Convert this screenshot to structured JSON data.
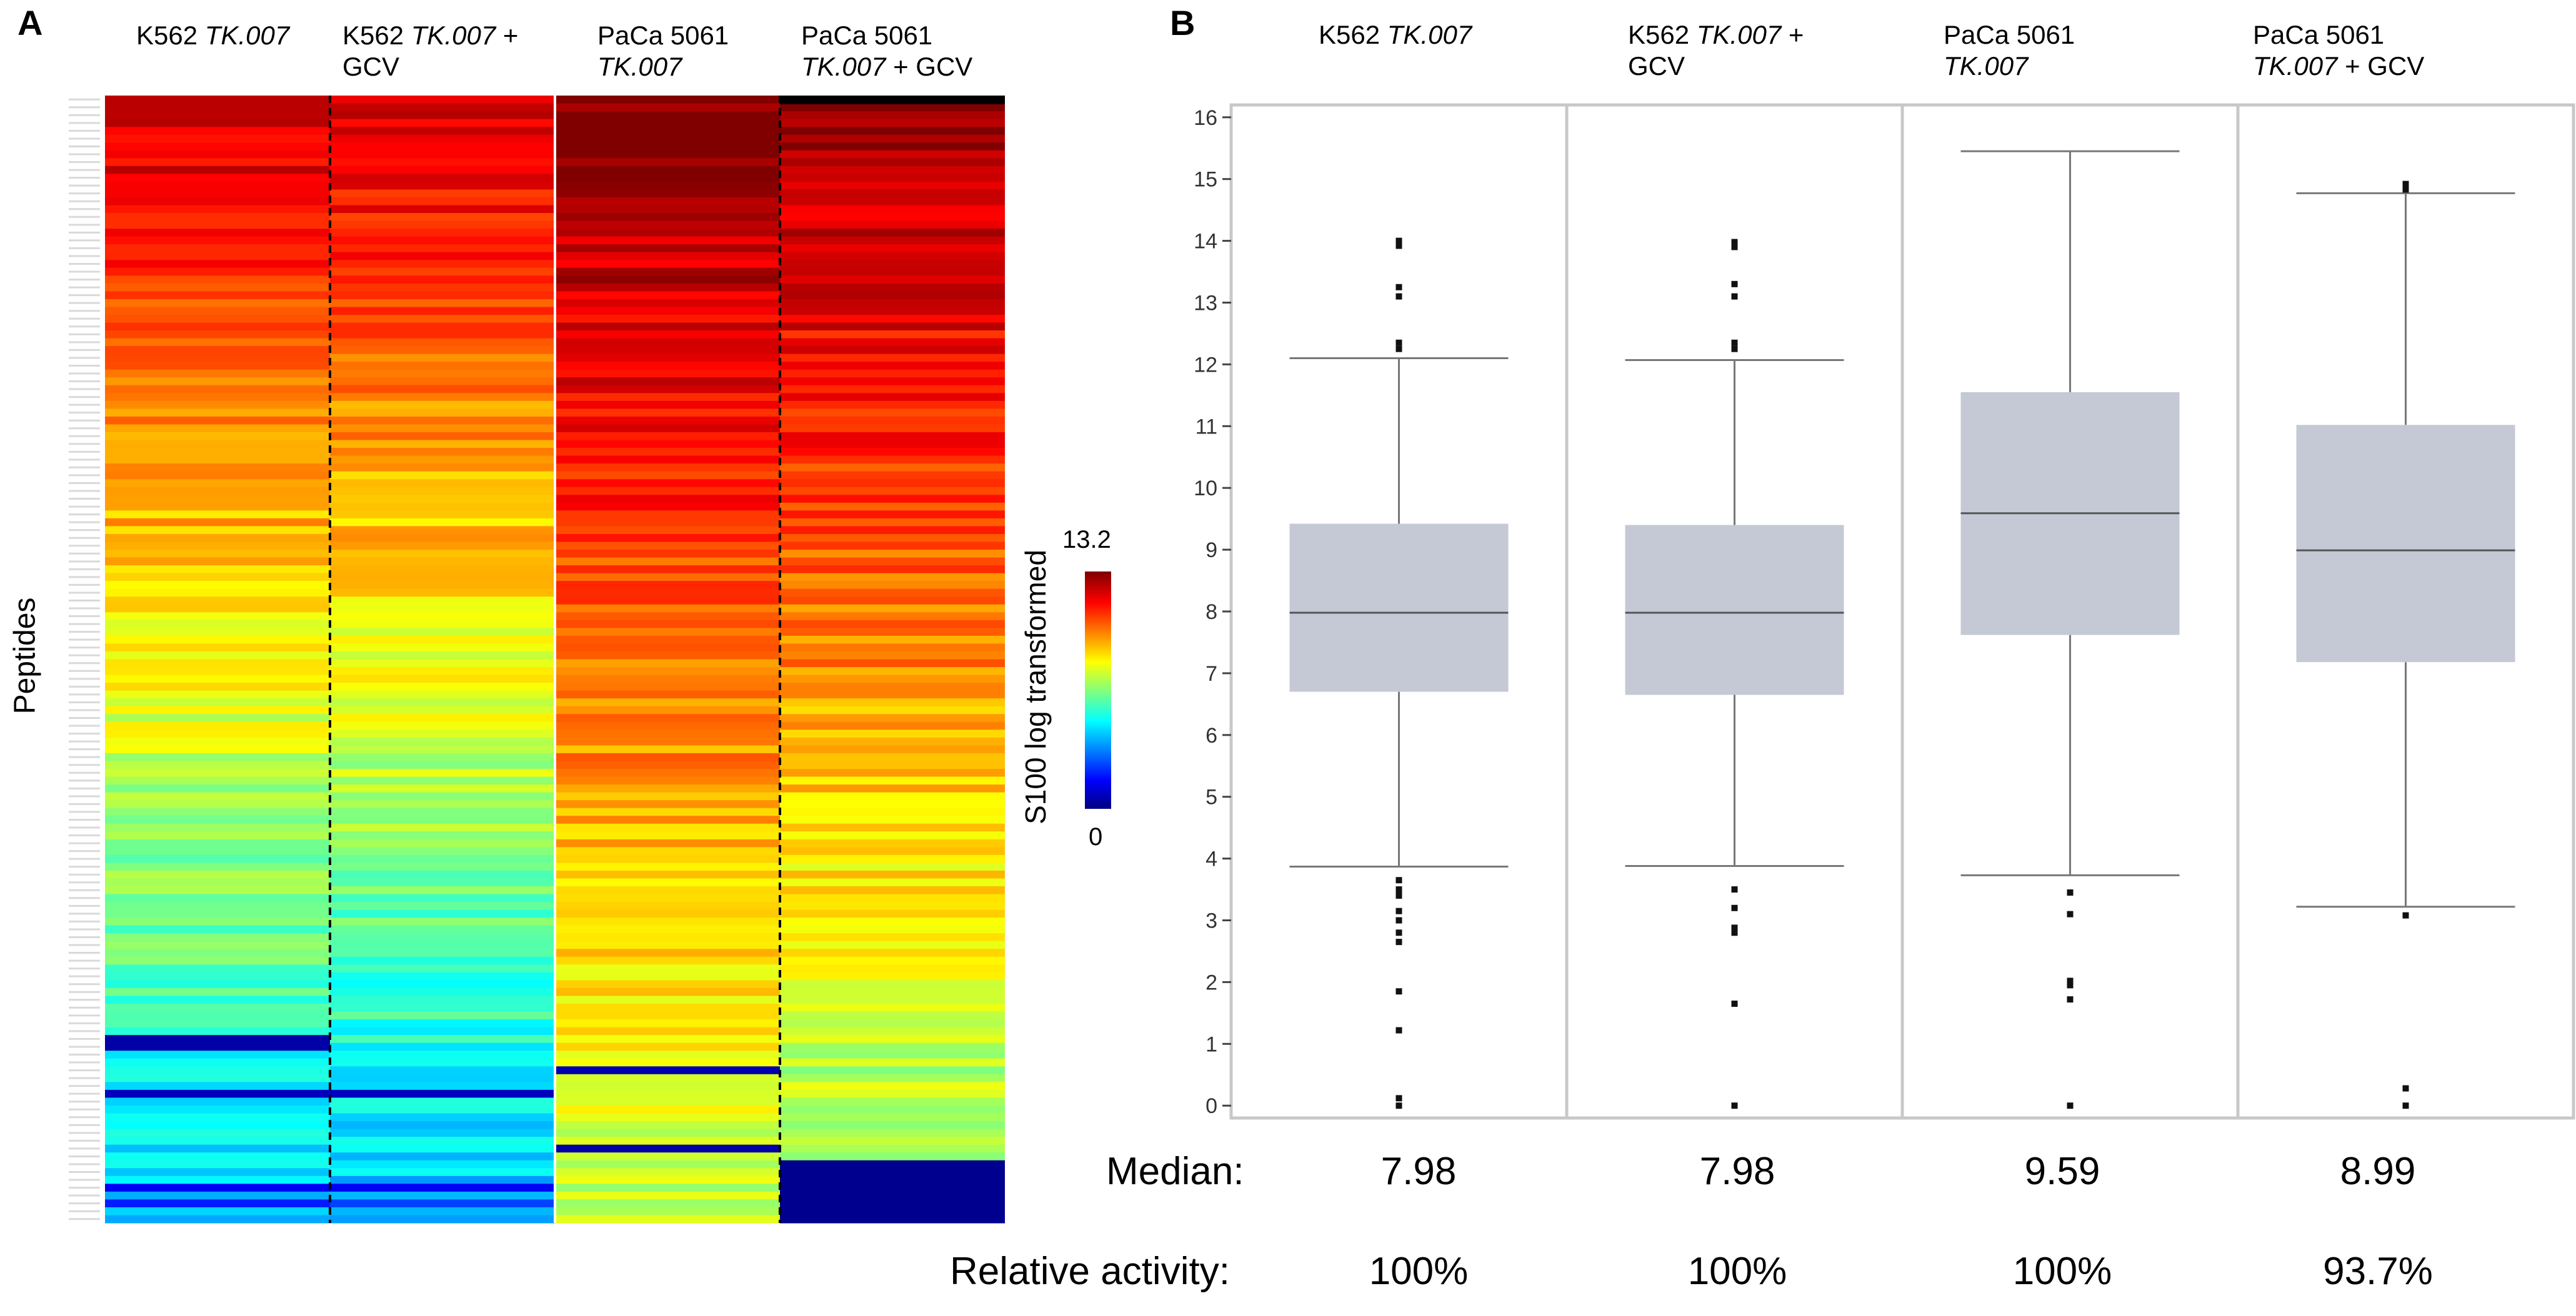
{
  "panel_a": {
    "letter": "A",
    "y_label": "Peptides",
    "columns": [
      {
        "line1": "K562 ",
        "line1_italic": "TK.007",
        "line2_prefix": "",
        "line2_italic": "",
        "line2_suffix": ""
      },
      {
        "line1": "K562 ",
        "line1_italic": "TK.007",
        "line1_suffix": " +",
        "line2_prefix": "GCV",
        "line2_italic": "",
        "line2_suffix": ""
      },
      {
        "line1": "PaCa 5061",
        "line1_italic": "",
        "line2_prefix": "",
        "line2_italic": "TK.007",
        "line2_suffix": ""
      },
      {
        "line1": "PaCa 5061",
        "line1_italic": "",
        "line2_prefix": "",
        "line2_italic": "TK.007",
        "line2_suffix": " + GCV"
      }
    ],
    "colorbar": {
      "max_label": "13.2",
      "min_label": "0",
      "title": "S100 log transformed",
      "min": 0,
      "max": 13.2
    }
  },
  "panel_b": {
    "letter": "B",
    "median_label": "Median:",
    "activity_label": "Relative activity:"
  },
  "chart_data": [
    {
      "type": "heatmap",
      "title": "",
      "xlabel": "",
      "ylabel": "Peptides",
      "categories": [
        "K562 TK.007",
        "K562 TK.007 + GCV",
        "PaCa 5061 TK.007",
        "PaCa 5061 TK.007 + GCV"
      ],
      "rows": 144,
      "value_range": [
        0,
        13.2
      ],
      "colorscale": "jet",
      "note": "Peptide rows sorted by intensity; values estimated from colors"
    },
    {
      "type": "box",
      "title": "",
      "xlabel": "",
      "ylabel": "",
      "ylim": [
        -0.2,
        16.2
      ],
      "yticks": [
        0,
        1,
        2,
        3,
        4,
        5,
        6,
        7,
        8,
        9,
        10,
        11,
        12,
        13,
        14,
        15,
        16
      ],
      "categories": [
        "K562 TK.007",
        "K562 TK.007 + GCV",
        "PaCa 5061 TK.007",
        "PaCa 5061 TK.007 + GCV"
      ],
      "series": [
        {
          "name": "K562 TK.007",
          "label_plain": "K562 ",
          "label_italic": "TK.007",
          "label_suffix": "",
          "label_line2": "",
          "whisker_low": 3.87,
          "q1": 6.7,
          "median": 7.98,
          "q3": 9.42,
          "whisker_high": 12.1,
          "outliers": [
            0,
            0.12,
            1.22,
            1.85,
            2.65,
            2.8,
            3.0,
            3.15,
            3.4,
            3.5,
            3.65,
            12.25,
            12.35,
            13.1,
            13.25,
            13.92,
            14.0
          ],
          "median_text": "7.98",
          "activity_text": "100%"
        },
        {
          "name": "K562 TK.007 + GCV",
          "label_plain": "K562 ",
          "label_italic": "TK.007",
          "label_suffix": " +",
          "label_line2": "GCV",
          "whisker_low": 3.88,
          "q1": 6.65,
          "median": 7.98,
          "q3": 9.4,
          "whisker_high": 12.07,
          "outliers": [
            0,
            1.65,
            2.8,
            2.88,
            3.2,
            3.5,
            12.25,
            12.35,
            13.1,
            13.3,
            13.9,
            13.98
          ],
          "median_text": "7.98",
          "activity_text": "100%"
        },
        {
          "name": "PaCa 5061 TK.007",
          "label_plain": "PaCa 5061",
          "label_italic": "",
          "label_suffix": "",
          "label_line2_italic": "TK.007",
          "label_line2": "",
          "whisker_low": 3.73,
          "q1": 7.62,
          "median": 9.59,
          "q3": 11.55,
          "whisker_high": 15.45,
          "outliers": [
            0,
            1.72,
            1.95,
            2.02,
            3.1,
            3.45
          ],
          "median_text": "9.59",
          "activity_text": "100%"
        },
        {
          "name": "PaCa 5061 TK.007 + GCV",
          "label_plain": "PaCa 5061",
          "label_italic": "",
          "label_suffix": "",
          "label_line2_italic": "TK.007",
          "label_line2": " + GCV",
          "whisker_low": 3.22,
          "q1": 7.18,
          "median": 8.99,
          "q3": 11.02,
          "whisker_high": 14.77,
          "outliers": [
            0,
            0.28,
            3.08,
            14.83,
            14.92
          ],
          "median_text": "8.99",
          "activity_text": "93.7%"
        }
      ]
    }
  ]
}
